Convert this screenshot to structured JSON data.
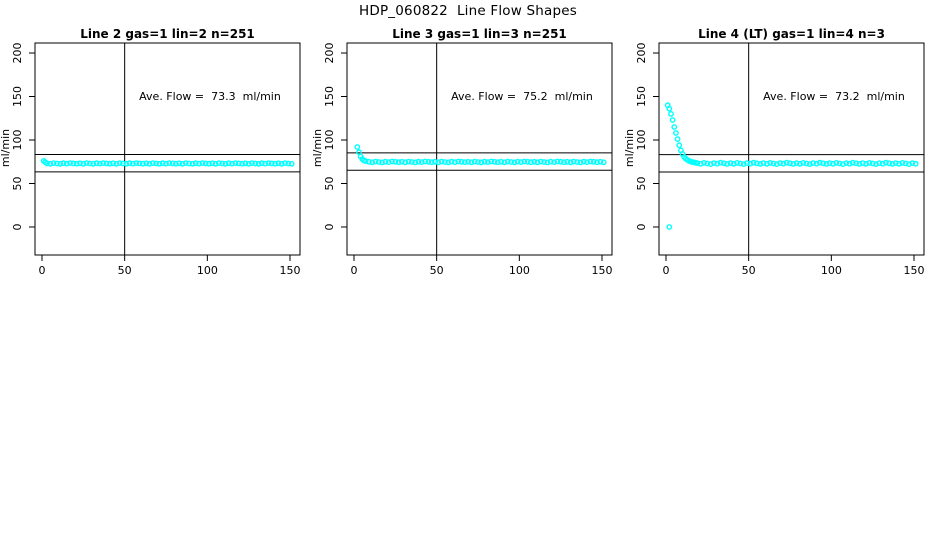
{
  "title": "HDP_060822  Line Flow Shapes",
  "colors": {
    "marker": "#00FFFF",
    "axis": "#000000",
    "background": "#FFFFFF"
  },
  "axes": {
    "x_ticks": [
      0,
      50,
      100,
      150
    ],
    "y_ticks": [
      0,
      50,
      100,
      150,
      200
    ],
    "y_label": "ml/min",
    "x_range": [
      0,
      155
    ],
    "y_range": [
      0,
      210
    ],
    "grid": "off",
    "legend": "none"
  },
  "chart_data": [
    {
      "type": "scatter",
      "title": "Line 2 gas=1 lin=2 n=251",
      "annotation": "Ave. Flow =  73.3  ml/min",
      "ave_flow_ml_min": 73.3,
      "n": 251,
      "ylabel": "ml/min",
      "vline_x": 50,
      "ref_lines_y": [
        83.3,
        63.3
      ],
      "points": [
        [
          1,
          76
        ],
        [
          2,
          74.5
        ],
        [
          3,
          73.2
        ],
        [
          5,
          72.7
        ],
        [
          7,
          73.4
        ],
        [
          9,
          73
        ],
        [
          11,
          72.6
        ],
        [
          13,
          73.3
        ],
        [
          15,
          72.9
        ],
        [
          17,
          73.5
        ],
        [
          19,
          73.1
        ],
        [
          21,
          72.8
        ],
        [
          23,
          73.2
        ],
        [
          25,
          72.7
        ],
        [
          27,
          73.4
        ],
        [
          29,
          73
        ],
        [
          31,
          72.6
        ],
        [
          33,
          73.3
        ],
        [
          35,
          72.9
        ],
        [
          37,
          73.5
        ],
        [
          39,
          73.1
        ],
        [
          41,
          72.8
        ],
        [
          43,
          73.2
        ],
        [
          45,
          72.7
        ],
        [
          47,
          73.4
        ],
        [
          49,
          73
        ],
        [
          51,
          72.6
        ],
        [
          53,
          73.3
        ],
        [
          55,
          72.9
        ],
        [
          57,
          73.5
        ],
        [
          59,
          73.1
        ],
        [
          61,
          72.8
        ],
        [
          63,
          73.2
        ],
        [
          65,
          72.7
        ],
        [
          67,
          73.4
        ],
        [
          69,
          73
        ],
        [
          71,
          72.6
        ],
        [
          73,
          73.3
        ],
        [
          75,
          72.9
        ],
        [
          77,
          73.5
        ],
        [
          79,
          73.1
        ],
        [
          81,
          72.8
        ],
        [
          83,
          73.2
        ],
        [
          85,
          72.7
        ],
        [
          87,
          73.4
        ],
        [
          89,
          73
        ],
        [
          91,
          72.6
        ],
        [
          93,
          73.3
        ],
        [
          95,
          72.9
        ],
        [
          97,
          73.5
        ],
        [
          99,
          73.1
        ],
        [
          101,
          72.8
        ],
        [
          103,
          73.2
        ],
        [
          105,
          72.7
        ],
        [
          107,
          73.4
        ],
        [
          109,
          73
        ],
        [
          111,
          72.6
        ],
        [
          113,
          73.3
        ],
        [
          115,
          72.9
        ],
        [
          117,
          73.5
        ],
        [
          119,
          73.1
        ],
        [
          121,
          72.8
        ],
        [
          123,
          73.2
        ],
        [
          125,
          72.7
        ],
        [
          127,
          73.4
        ],
        [
          129,
          73
        ],
        [
          131,
          72.6
        ],
        [
          133,
          73.3
        ],
        [
          135,
          72.9
        ],
        [
          137,
          73.5
        ],
        [
          139,
          73.1
        ],
        [
          141,
          72.8
        ],
        [
          143,
          73.2
        ],
        [
          145,
          72.7
        ],
        [
          147,
          73.4
        ],
        [
          149,
          73
        ],
        [
          151,
          72.6
        ]
      ]
    },
    {
      "type": "scatter",
      "title": "Line 3 gas=1 lin=3 n=251",
      "annotation": "Ave. Flow =  75.2  ml/min",
      "ave_flow_ml_min": 75.2,
      "n": 251,
      "ylabel": "ml/min",
      "vline_x": 50,
      "ref_lines_y": [
        85.2,
        65.2
      ],
      "points": [
        [
          2,
          92
        ],
        [
          3,
          86
        ],
        [
          4,
          81
        ],
        [
          5,
          78
        ],
        [
          6,
          76.5
        ],
        [
          7,
          75.8
        ],
        [
          9,
          75
        ],
        [
          11,
          74.4
        ],
        [
          13,
          75.2
        ],
        [
          15,
          74.7
        ],
        [
          17,
          74.3
        ],
        [
          19,
          75.1
        ],
        [
          21,
          74.6
        ],
        [
          23,
          75.3
        ],
        [
          25,
          74.9
        ],
        [
          27,
          74.5
        ],
        [
          29,
          75
        ],
        [
          31,
          74.4
        ],
        [
          33,
          75.2
        ],
        [
          35,
          74.7
        ],
        [
          37,
          74.3
        ],
        [
          39,
          75.1
        ],
        [
          41,
          74.6
        ],
        [
          43,
          75.3
        ],
        [
          45,
          74.9
        ],
        [
          47,
          74.5
        ],
        [
          49,
          75
        ],
        [
          51,
          74.4
        ],
        [
          53,
          75.2
        ],
        [
          55,
          74.7
        ],
        [
          57,
          74.3
        ],
        [
          59,
          75.1
        ],
        [
          61,
          74.6
        ],
        [
          63,
          75.3
        ],
        [
          65,
          74.9
        ],
        [
          67,
          74.5
        ],
        [
          69,
          75
        ],
        [
          71,
          74.4
        ],
        [
          73,
          75.2
        ],
        [
          75,
          74.7
        ],
        [
          77,
          74.3
        ],
        [
          79,
          75.1
        ],
        [
          81,
          74.6
        ],
        [
          83,
          75.3
        ],
        [
          85,
          74.9
        ],
        [
          87,
          74.5
        ],
        [
          89,
          75
        ],
        [
          91,
          74.4
        ],
        [
          93,
          75.2
        ],
        [
          95,
          74.7
        ],
        [
          97,
          74.3
        ],
        [
          99,
          75.1
        ],
        [
          101,
          74.6
        ],
        [
          103,
          75.3
        ],
        [
          105,
          74.9
        ],
        [
          107,
          74.5
        ],
        [
          109,
          75
        ],
        [
          111,
          74.4
        ],
        [
          113,
          75.2
        ],
        [
          115,
          74.7
        ],
        [
          117,
          74.3
        ],
        [
          119,
          75.1
        ],
        [
          121,
          74.6
        ],
        [
          123,
          75.3
        ],
        [
          125,
          74.9
        ],
        [
          127,
          74.5
        ],
        [
          129,
          75
        ],
        [
          131,
          74.4
        ],
        [
          133,
          75.2
        ],
        [
          135,
          74.7
        ],
        [
          137,
          74.3
        ],
        [
          139,
          75.1
        ],
        [
          141,
          74.6
        ],
        [
          143,
          75.3
        ],
        [
          145,
          74.9
        ],
        [
          147,
          74.5
        ],
        [
          149,
          75
        ],
        [
          151,
          74.4
        ]
      ]
    },
    {
      "type": "scatter",
      "title": "Line 4 (LT) gas=1 lin=4 n=3",
      "annotation": "Ave. Flow =  73.2  ml/min",
      "ave_flow_ml_min": 73.2,
      "n": 3,
      "ylabel": "ml/min",
      "vline_x": 50,
      "ref_lines_y": [
        83.2,
        63.2
      ],
      "points": [
        [
          2,
          0
        ],
        [
          1,
          140
        ],
        [
          2,
          136
        ],
        [
          3,
          130
        ],
        [
          4,
          123
        ],
        [
          5,
          115
        ],
        [
          6,
          108
        ],
        [
          7,
          101
        ],
        [
          8,
          94
        ],
        [
          9,
          88
        ],
        [
          10,
          84
        ],
        [
          11,
          80.5
        ],
        [
          12,
          78.5
        ],
        [
          13,
          77
        ],
        [
          14,
          76
        ],
        [
          15,
          75.2
        ],
        [
          16,
          74.6
        ],
        [
          17,
          74.2
        ],
        [
          18,
          73.8
        ],
        [
          19,
          73.4
        ],
        [
          21,
          72.6
        ],
        [
          23,
          73.7
        ],
        [
          25,
          73
        ],
        [
          27,
          72.3
        ],
        [
          29,
          73.5
        ],
        [
          31,
          72.8
        ],
        [
          33,
          73.9
        ],
        [
          35,
          73.2
        ],
        [
          37,
          72.5
        ],
        [
          39,
          73.4
        ],
        [
          41,
          72.6
        ],
        [
          43,
          73.7
        ],
        [
          45,
          73
        ],
        [
          47,
          72.3
        ],
        [
          49,
          73.5
        ],
        [
          51,
          72.8
        ],
        [
          53,
          73.9
        ],
        [
          55,
          73.2
        ],
        [
          57,
          72.5
        ],
        [
          59,
          73.4
        ],
        [
          61,
          72.6
        ],
        [
          63,
          73.7
        ],
        [
          65,
          73
        ],
        [
          67,
          72.3
        ],
        [
          69,
          73.5
        ],
        [
          71,
          72.8
        ],
        [
          73,
          73.9
        ],
        [
          75,
          73.2
        ],
        [
          77,
          72.5
        ],
        [
          79,
          73.4
        ],
        [
          81,
          72.6
        ],
        [
          83,
          73.7
        ],
        [
          85,
          73
        ],
        [
          87,
          72.3
        ],
        [
          89,
          73.5
        ],
        [
          91,
          72.8
        ],
        [
          93,
          73.9
        ],
        [
          95,
          73.2
        ],
        [
          97,
          72.5
        ],
        [
          99,
          73.4
        ],
        [
          101,
          72.6
        ],
        [
          103,
          73.7
        ],
        [
          105,
          73
        ],
        [
          107,
          72.3
        ],
        [
          109,
          73.5
        ],
        [
          111,
          72.8
        ],
        [
          113,
          73.9
        ],
        [
          115,
          73.2
        ],
        [
          117,
          72.5
        ],
        [
          119,
          73.4
        ],
        [
          121,
          72.6
        ],
        [
          123,
          73.7
        ],
        [
          125,
          73
        ],
        [
          127,
          72.3
        ],
        [
          129,
          73.5
        ],
        [
          131,
          72.8
        ],
        [
          133,
          73.9
        ],
        [
          135,
          73.2
        ],
        [
          137,
          72.5
        ],
        [
          139,
          73.4
        ],
        [
          141,
          72.6
        ],
        [
          143,
          73.7
        ],
        [
          145,
          73
        ],
        [
          147,
          72.3
        ],
        [
          149,
          73.5
        ],
        [
          151,
          72.8
        ]
      ]
    }
  ]
}
